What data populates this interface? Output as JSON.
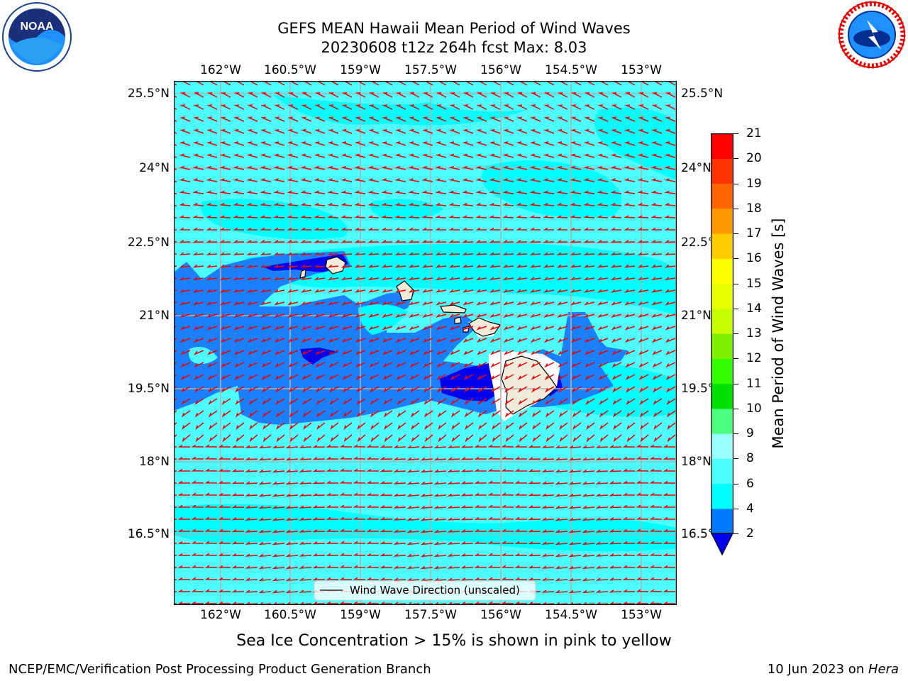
{
  "title_line1": "GEFS MEAN Hawaii Mean Period of Wind Waves",
  "title_line2": "20230608 t12z 264h fcst   Max: 8.03",
  "lon_labels": [
    "162°W",
    "160.5°W",
    "159°W",
    "157.5°W",
    "156°W",
    "154.5°W",
    "153°W"
  ],
  "lat_labels_left": [
    "25.5°N",
    "24°N",
    "22.5°N",
    "21°N",
    "19.5°N",
    "18°N",
    "16.5°N"
  ],
  "lat_labels_right": [
    "25.5°N",
    "24°N",
    "22.5°N",
    "21°N",
    "19.5°N",
    "18°N",
    "16.5°N"
  ],
  "legend_label": "Wind Wave Direction (unscaled)",
  "colorbar": {
    "label": "Mean Period of Wind Waves [s]",
    "ticks": [
      "2",
      "4",
      "6",
      "8",
      "9",
      "10",
      "11",
      "12",
      "13",
      "14",
      "15",
      "16",
      "17",
      "18",
      "19",
      "20",
      "21"
    ],
    "colors": [
      "#0000ee",
      "#0078ff",
      "#00ffff",
      "#4dffff",
      "#99ffff",
      "#4dff80",
      "#00e000",
      "#33ff00",
      "#80f000",
      "#c8ff00",
      "#e8ff00",
      "#ffff00",
      "#ffcc00",
      "#ff9900",
      "#ff6600",
      "#ff3300",
      "#ff0000"
    ]
  },
  "map_colors": {
    "ocean": "#4dffff",
    "light_patch": "#00ffff",
    "mid_blue": "#1a80ff",
    "dark_blue": "#0000ee",
    "land": "#f0ecd9",
    "arrow": "#ee0000"
  },
  "islands": [
    "Kauai",
    "Oahu",
    "Molokai",
    "Maui",
    "Hawaii"
  ],
  "bottom_note": "Sea Ice Concentration > 15% is shown in pink to yellow",
  "footer_left": "NCEP/EMC/Verification Post Processing Product Generation Branch",
  "footer_right_prefix": "10 Jun 2023 on ",
  "footer_right_host": "Hera",
  "logo_left_text": "NOAA",
  "logo_right_text": "NATIONAL WEATHER SERVICE"
}
